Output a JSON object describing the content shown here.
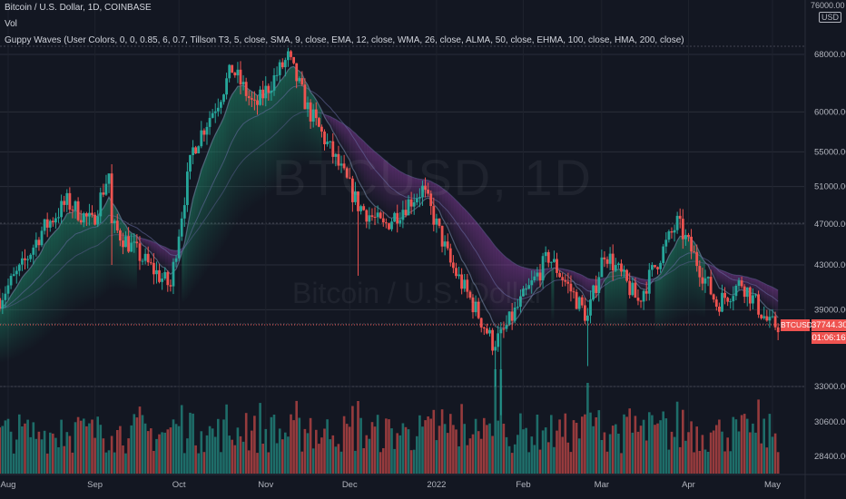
{
  "header": {
    "title": "Bitcoin / U.S. Dollar, 1D, COINBASE",
    "vol_label": "Vol",
    "indicator_label": "Guppy Waves (User Colors, 0, 0, 0.85, 6, 0.7, Tillson T3, 5, close, SMA, 9, close, EMA, 12, close, WMA, 26, close, ALMA, 50, close, EHMA, 100, close, HMA, 200, close)"
  },
  "watermark": {
    "symbol": "BTCUSD, 1D",
    "description": "Bitcoin / U.S. Dollar"
  },
  "price_tag": {
    "symbol": "BTCUSD",
    "price": "37744.30",
    "countdown": "01:06:16"
  },
  "price_axis": {
    "top_value": "76000.00",
    "currency": "USD"
  },
  "chart_data": {
    "type": "candlestick",
    "title": "Bitcoin / U.S. Dollar, 1D, COINBASE",
    "current_price": 37744.3,
    "price_axis": {
      "scale": "log",
      "range": [
        27500,
        77000
      ],
      "ticks": [
        "68000.00",
        "60000.00",
        "55000.00",
        "51000.00",
        "47000.00",
        "43000.00",
        "39000.00",
        "33000.00"
      ]
    },
    "volume_axis_ticks": [
      "30600.00",
      "28400.00"
    ],
    "x_ticks": [
      "Aug",
      "Sep",
      "Oct",
      "Nov",
      "Dec",
      "2022",
      "Feb",
      "Mar",
      "Apr",
      "May"
    ],
    "close_path": [
      {
        "date": "2021-07-29",
        "close": 40000
      },
      {
        "date": "2021-08-06",
        "close": 42800
      },
      {
        "date": "2021-08-13",
        "close": 46300
      },
      {
        "date": "2021-08-22",
        "close": 49300
      },
      {
        "date": "2021-08-31",
        "close": 47100
      },
      {
        "date": "2021-09-06",
        "close": 52500
      },
      {
        "date": "2021-09-07",
        "close": 46800
      },
      {
        "date": "2021-09-20",
        "close": 43000
      },
      {
        "date": "2021-09-28",
        "close": 41000
      },
      {
        "date": "2021-10-06",
        "close": 55300
      },
      {
        "date": "2021-10-15",
        "close": 61500
      },
      {
        "date": "2021-10-20",
        "close": 65900
      },
      {
        "date": "2021-10-28",
        "close": 60500
      },
      {
        "date": "2021-11-09",
        "close": 67500
      },
      {
        "date": "2021-11-16",
        "close": 60400
      },
      {
        "date": "2021-11-26",
        "close": 54000
      },
      {
        "date": "2021-12-04",
        "close": 49000
      },
      {
        "date": "2021-12-13",
        "close": 46700
      },
      {
        "date": "2021-12-27",
        "close": 50700
      },
      {
        "date": "2022-01-06",
        "close": 43100
      },
      {
        "date": "2022-01-21",
        "close": 36300
      },
      {
        "date": "2022-01-24",
        "close": 36800
      },
      {
        "date": "2022-02-05",
        "close": 41600
      },
      {
        "date": "2022-02-10",
        "close": 43800
      },
      {
        "date": "2022-02-24",
        "close": 38300
      },
      {
        "date": "2022-03-02",
        "close": 44300
      },
      {
        "date": "2022-03-14",
        "close": 39700
      },
      {
        "date": "2022-03-28",
        "close": 47100
      },
      {
        "date": "2022-04-11",
        "close": 39500
      },
      {
        "date": "2022-04-20",
        "close": 41400
      },
      {
        "date": "2022-04-30",
        "close": 37700
      },
      {
        "date": "2022-05-03",
        "close": 37744
      }
    ]
  }
}
